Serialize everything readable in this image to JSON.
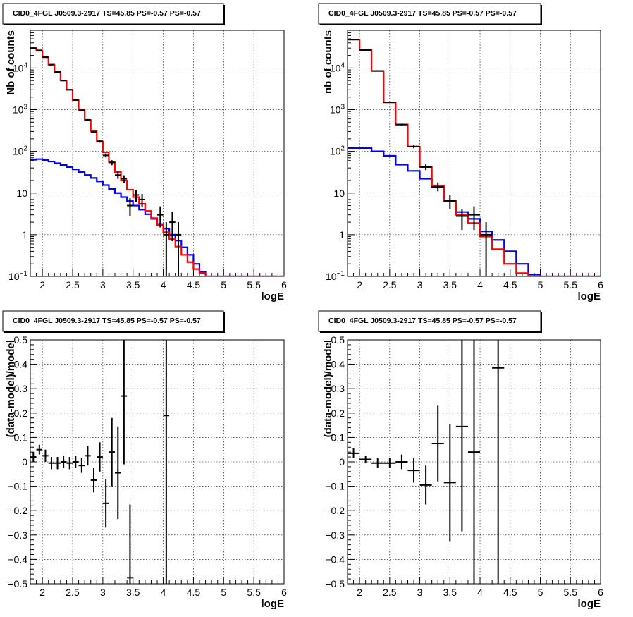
{
  "chart_data": [
    {
      "type": "histogram",
      "title": "CID0_4FGL J0509.3-2917 TS=45.85 PS=-0.57 PS=-0.57",
      "xlabel": "logE",
      "ylabel": "Nb of counts",
      "yscale": "log",
      "xlim": [
        1.8,
        6.0
      ],
      "ylim": [
        0.1,
        80000
      ],
      "x_ticks": [
        "2",
        "2.5",
        "3",
        "3.5",
        "4",
        "4.5",
        "5",
        "5.5",
        "6"
      ],
      "y_ticks": [
        "10^-1",
        "1",
        "10",
        "10^2",
        "10^3",
        "10^4"
      ],
      "grid": true,
      "bin_edges": [
        1.8,
        1.9,
        2.0,
        2.1,
        2.2,
        2.3,
        2.4,
        2.5,
        2.6,
        2.7,
        2.8,
        2.9,
        3.0,
        3.1,
        3.2,
        3.3,
        3.4,
        3.5,
        3.6,
        3.7,
        3.8,
        3.9,
        4.0,
        4.1,
        4.2,
        4.3,
        4.4,
        4.5,
        4.6,
        4.7,
        4.8,
        4.9,
        5.0,
        5.1,
        5.2,
        5.3,
        5.4,
        5.5,
        5.6,
        5.7,
        5.8,
        5.9,
        6.0
      ],
      "series": [
        {
          "color": "#ff0000",
          "values": [
            30000,
            26000,
            18000,
            12000,
            8000,
            5000,
            3000,
            1700,
            1000,
            560,
            310,
            170,
            95,
            55,
            32,
            20,
            12,
            8,
            5.5,
            3.7,
            2.5,
            1.7,
            1.15,
            0.78,
            0.52,
            0.33,
            0.22,
            0.15,
            0.12,
            0.1,
            0.1,
            0.1,
            0.1,
            0.1,
            0.1,
            0.1,
            0.1,
            0.1,
            0.1,
            0.1,
            0.1,
            0.1
          ]
        },
        {
          "color": "#0000ff",
          "values": [
            63,
            65,
            62,
            57,
            52,
            47,
            42,
            37,
            32,
            27,
            23,
            19,
            15.5,
            12.5,
            10,
            8,
            6.4,
            5,
            4,
            3.1,
            2.4,
            1.8,
            1.4,
            1.0,
            0.72,
            0.5,
            0.33,
            0.2,
            0.13,
            0.1,
            0.1,
            0.1,
            0.1,
            0.1,
            0.1,
            0.1,
            0.1,
            0.1,
            0.1,
            0.1,
            0.1,
            0.1
          ]
        }
      ],
      "points": [
        {
          "x": 1.85,
          "y": 30000
        },
        {
          "x": 1.95,
          "y": 26500
        },
        {
          "x": 2.05,
          "y": 18200
        },
        {
          "x": 2.15,
          "y": 12000
        },
        {
          "x": 2.25,
          "y": 8000
        },
        {
          "x": 2.35,
          "y": 5000
        },
        {
          "x": 2.45,
          "y": 3000
        },
        {
          "x": 2.55,
          "y": 1700
        },
        {
          "x": 2.65,
          "y": 980
        },
        {
          "x": 2.75,
          "y": 570
        },
        {
          "x": 2.85,
          "y": 290
        },
        {
          "x": 2.95,
          "y": 175
        },
        {
          "x": 3.05,
          "y": 80
        },
        {
          "x": 3.15,
          "y": 54
        },
        {
          "x": 3.25,
          "y": 27
        },
        {
          "x": 3.35,
          "y": 22
        },
        {
          "x": 3.45,
          "y": 5,
          "elo": 2.8,
          "ehi": 7.5
        },
        {
          "x": 3.55,
          "y": 9,
          "elo": 6,
          "ehi": 12
        },
        {
          "x": 3.65,
          "y": 7,
          "elo": 4.5,
          "ehi": 9.5
        },
        {
          "x": 3.95,
          "y": 3,
          "elo": 1.5,
          "ehi": 4.8
        },
        {
          "x": 4.05,
          "y": 1,
          "elo": 0.1,
          "ehi": 2.0
        },
        {
          "x": 4.15,
          "y": 2,
          "elo": 0.7,
          "ehi": 3.5
        },
        {
          "x": 4.25,
          "y": 1,
          "elo": 0.1,
          "ehi": 2.0
        }
      ]
    },
    {
      "type": "histogram",
      "title": "CID0_4FGL J0509.3-2917 TS=45.85 PS=-0.57 PS=-0.57",
      "xlabel": "logE",
      "ylabel": "nb of counts",
      "yscale": "log",
      "xlim": [
        1.8,
        6.0
      ],
      "ylim": [
        0.1,
        80000
      ],
      "x_ticks": [
        "2",
        "2.5",
        "3",
        "3.5",
        "4",
        "4.5",
        "5",
        "5.5",
        "6"
      ],
      "y_ticks": [
        "10^-1",
        "1",
        "10",
        "10^2",
        "10^3",
        "10^4"
      ],
      "grid": true,
      "bin_edges": [
        1.8,
        2.0,
        2.2,
        2.4,
        2.6,
        2.8,
        3.0,
        3.2,
        3.4,
        3.6,
        3.8,
        4.0,
        4.2,
        4.4,
        4.6,
        4.8,
        5.0,
        5.2,
        5.4,
        5.6,
        5.8,
        6.0
      ],
      "series": [
        {
          "color": "#ff0000",
          "values": [
            48000,
            27000,
            8500,
            1500,
            440,
            130,
            42,
            15,
            6.5,
            3,
            1.9,
            0.9,
            0.45,
            0.2,
            0.12,
            0.1,
            0.1,
            0.1,
            0.1,
            0.1,
            0.1
          ]
        },
        {
          "color": "#0000ff",
          "values": [
            120,
            120,
            100,
            78,
            48,
            34,
            22,
            14,
            6.5,
            3.5,
            2.4,
            1.2,
            0.75,
            0.4,
            0.2,
            0.11,
            0.1,
            0.1,
            0.1,
            0.1,
            0.1
          ]
        }
      ],
      "points": [
        {
          "x": 1.9,
          "y": 48000
        },
        {
          "x": 2.1,
          "y": 27000
        },
        {
          "x": 2.3,
          "y": 8500
        },
        {
          "x": 2.5,
          "y": 1500
        },
        {
          "x": 2.7,
          "y": 440
        },
        {
          "x": 2.9,
          "y": 130
        },
        {
          "x": 3.1,
          "y": 42
        },
        {
          "x": 3.3,
          "y": 14,
          "elo": 11,
          "ehi": 18
        },
        {
          "x": 3.5,
          "y": 6.5,
          "elo": 4.2,
          "ehi": 9
        },
        {
          "x": 3.7,
          "y": 2.8,
          "elo": 1.3,
          "ehi": 4.2
        },
        {
          "x": 3.9,
          "y": 3,
          "elo": 1.3,
          "ehi": 4.8
        },
        {
          "x": 4.1,
          "y": 1,
          "elo": 0.1,
          "ehi": 2.0
        }
      ]
    },
    {
      "type": "scatter",
      "title": "CID0_4FGL J0509.3-2917 TS=45.85 PS=-0.57 PS=-0.57",
      "xlabel": "logE",
      "ylabel": "(data-model)/model",
      "xlim": [
        1.8,
        6.0
      ],
      "ylim": [
        -0.5,
        0.5
      ],
      "x_ticks": [
        "2",
        "2.5",
        "3",
        "3.5",
        "4",
        "4.5",
        "5",
        "5.5",
        "6"
      ],
      "y_ticks": [
        "-0.5",
        "-0.4",
        "-0.3",
        "-0.2",
        "-0.1",
        "0",
        "0.1",
        "0.2",
        "0.3",
        "0.4",
        "0.5"
      ],
      "grid": true,
      "bin_halfwidth": 0.05,
      "points": [
        {
          "x": 1.85,
          "y": 0.02,
          "err": 0.02
        },
        {
          "x": 1.95,
          "y": 0.05,
          "err": 0.02
        },
        {
          "x": 2.05,
          "y": 0.025,
          "err": 0.025
        },
        {
          "x": 2.15,
          "y": -0.005,
          "err": 0.025
        },
        {
          "x": 2.25,
          "y": -0.005,
          "err": 0.025
        },
        {
          "x": 2.35,
          "y": 0.0,
          "err": 0.025
        },
        {
          "x": 2.45,
          "y": -0.005,
          "err": 0.025
        },
        {
          "x": 2.55,
          "y": 0.0,
          "err": 0.025
        },
        {
          "x": 2.65,
          "y": -0.015,
          "err": 0.03
        },
        {
          "x": 2.75,
          "y": 0.025,
          "err": 0.04
        },
        {
          "x": 2.85,
          "y": -0.075,
          "err": 0.05
        },
        {
          "x": 2.95,
          "y": 0.02,
          "err": 0.06
        },
        {
          "x": 3.05,
          "y": -0.17,
          "err": 0.1
        },
        {
          "x": 3.15,
          "y": 0.04,
          "err": 0.14
        },
        {
          "x": 3.25,
          "y": -0.045,
          "err": 0.19
        },
        {
          "x": 3.35,
          "y": 0.27,
          "err": 0.28
        },
        {
          "x": 3.45,
          "y": -0.475,
          "err": 0.3
        },
        {
          "x": 4.05,
          "y": 0.19,
          "err": 1.0
        }
      ]
    },
    {
      "type": "scatter",
      "title": "CID0_4FGL J0509.3-2917 TS=45.85 PS=-0.57 PS=-0.57",
      "xlabel": "logE",
      "ylabel": "(data-model)/model",
      "xlim": [
        1.8,
        6.0
      ],
      "ylim": [
        -0.5,
        0.5
      ],
      "x_ticks": [
        "2",
        "2.5",
        "3",
        "3.5",
        "4",
        "4.5",
        "5",
        "5.5",
        "6"
      ],
      "y_ticks": [
        "-0.5",
        "-0.4",
        "-0.3",
        "-0.2",
        "-0.1",
        "0",
        "0.1",
        "0.2",
        "0.3",
        "0.4",
        "0.5"
      ],
      "grid": true,
      "bin_halfwidth": 0.1,
      "points": [
        {
          "x": 1.9,
          "y": 0.035,
          "err": 0.02
        },
        {
          "x": 2.1,
          "y": 0.01,
          "err": 0.015
        },
        {
          "x": 2.3,
          "y": -0.005,
          "err": 0.02
        },
        {
          "x": 2.5,
          "y": -0.005,
          "err": 0.02
        },
        {
          "x": 2.7,
          "y": 0.0,
          "err": 0.03
        },
        {
          "x": 2.9,
          "y": -0.035,
          "err": 0.05
        },
        {
          "x": 3.1,
          "y": -0.095,
          "err": 0.08
        },
        {
          "x": 3.3,
          "y": 0.075,
          "err": 0.155
        },
        {
          "x": 3.5,
          "y": -0.085,
          "err": 0.24
        },
        {
          "x": 3.7,
          "y": 0.145,
          "err": 0.43
        },
        {
          "x": 3.9,
          "y": 0.04,
          "err": 1.0
        },
        {
          "x": 4.3,
          "y": 0.385,
          "err": 1.0
        }
      ]
    }
  ]
}
